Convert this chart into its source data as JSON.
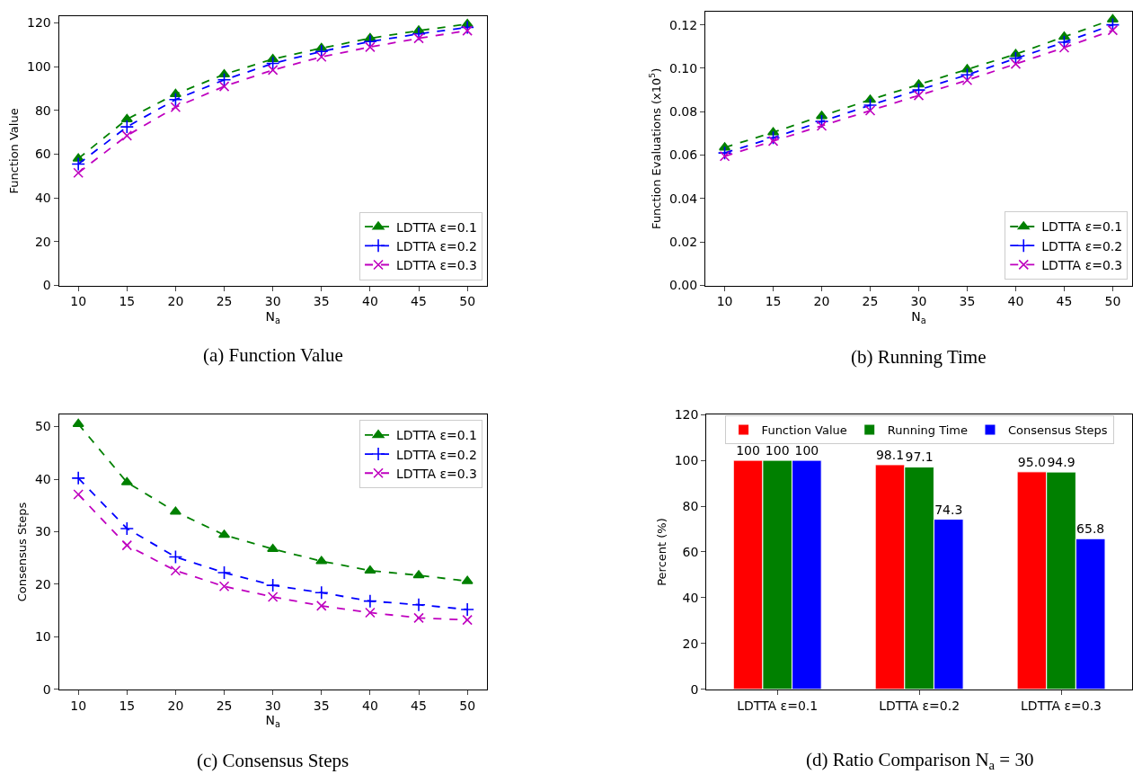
{
  "chart_data": [
    {
      "type": "line",
      "title": "(a) Function Value",
      "xlabel": "N$_{a}$",
      "ylabel": "Function Value",
      "x": [
        10,
        15,
        20,
        25,
        30,
        35,
        40,
        45,
        50
      ],
      "xlim": [
        8,
        52
      ],
      "xticks": [
        10,
        15,
        20,
        25,
        30,
        35,
        40,
        45,
        50
      ],
      "ylim": [
        0,
        123
      ],
      "yticks": [
        0,
        20,
        40,
        60,
        80,
        100,
        120
      ],
      "legend": "bottom right",
      "line_style": "dashed",
      "series": [
        {
          "name": "LDTTA ε=0.1",
          "color": "#008000",
          "marker": "triangle",
          "values": [
            58,
            76,
            87.5,
            96.5,
            103.5,
            108.5,
            113,
            116.5,
            119.5
          ]
        },
        {
          "name": "LDTTA ε=0.2",
          "color": "#0000ff",
          "marker": "plus",
          "values": [
            55.5,
            72.5,
            85,
            94,
            101.5,
            107,
            111.5,
            115,
            118
          ]
        },
        {
          "name": "LDTTA ε=0.3",
          "color": "#bf00bf",
          "marker": "cross",
          "values": [
            51.5,
            68.5,
            81.5,
            91,
            98.5,
            104.5,
            109,
            113,
            116.5
          ]
        }
      ]
    },
    {
      "type": "line",
      "title": "(b) Running Time",
      "xlabel": "N$_{a}$",
      "ylabel": "Function Evaluations (x10$^{5}$)",
      "x": [
        10,
        15,
        20,
        25,
        30,
        35,
        40,
        45,
        50
      ],
      "xlim": [
        8,
        52
      ],
      "xticks": [
        10,
        15,
        20,
        25,
        30,
        35,
        40,
        45,
        50
      ],
      "ylim": [
        0,
        0.126
      ],
      "yticks": [
        {
          "value": 0,
          "label": "0.00"
        },
        {
          "value": 0.02,
          "label": "0.02"
        },
        {
          "value": 0.04,
          "label": "0.04"
        },
        {
          "value": 0.06,
          "label": "0.06"
        },
        {
          "value": 0.08,
          "label": "0.08"
        },
        {
          "value": 0.1,
          "label": "0.10"
        },
        {
          "value": 0.12,
          "label": "0.12"
        }
      ],
      "legend": "bottom right",
      "line_style": "dashed",
      "series": [
        {
          "name": "LDTTA ε=0.1",
          "color": "#008000",
          "marker": "triangle",
          "values": [
            0.0635,
            0.0705,
            0.078,
            0.0855,
            0.0925,
            0.0995,
            0.1065,
            0.1145,
            0.1225
          ]
        },
        {
          "name": "LDTTA ε=0.2",
          "color": "#0000ff",
          "marker": "plus",
          "values": [
            0.061,
            0.068,
            0.0755,
            0.083,
            0.09,
            0.097,
            0.1045,
            0.112,
            0.12
          ]
        },
        {
          "name": "LDTTA ε=0.3",
          "color": "#bf00bf",
          "marker": "cross",
          "values": [
            0.0595,
            0.0665,
            0.0735,
            0.0805,
            0.0875,
            0.0945,
            0.102,
            0.1095,
            0.1175
          ]
        }
      ]
    },
    {
      "type": "line",
      "title": "(c) Consensus Steps",
      "xlabel": "N$_{a}$",
      "ylabel": "Consensus Steps",
      "x": [
        10,
        15,
        20,
        25,
        30,
        35,
        40,
        45,
        50
      ],
      "xlim": [
        8,
        52
      ],
      "xticks": [
        10,
        15,
        20,
        25,
        30,
        35,
        40,
        45,
        50
      ],
      "ylim": [
        0,
        52.3
      ],
      "yticks": [
        0,
        10,
        20,
        30,
        40,
        50
      ],
      "legend": "top right",
      "line_style": "dashed",
      "series": [
        {
          "name": "LDTTA ε=0.1",
          "color": "#008000",
          "marker": "triangle",
          "values": [
            50.5,
            39.4,
            33.8,
            29.4,
            26.7,
            24.4,
            22.6,
            21.7,
            20.6
          ]
        },
        {
          "name": "LDTTA ε=0.2",
          "color": "#0000ff",
          "marker": "plus",
          "values": [
            40.2,
            30.6,
            25.2,
            22.2,
            19.8,
            18.4,
            16.8,
            16.1,
            15.2
          ]
        },
        {
          "name": "LDTTA ε=0.3",
          "color": "#bf00bf",
          "marker": "cross",
          "values": [
            37.1,
            27.4,
            22.6,
            19.6,
            17.6,
            15.9,
            14.6,
            13.6,
            13.2
          ]
        }
      ]
    },
    {
      "type": "bar",
      "title": "(d) Ratio Comparison N$_{a}$ = 30",
      "ylabel": "Percent (%)",
      "categories": [
        "LDTTA ε=0.1",
        "LDTTA ε=0.2",
        "LDTTA ε=0.3"
      ],
      "ylim": [
        0,
        120
      ],
      "yticks": [
        0,
        20,
        40,
        60,
        80,
        100,
        120
      ],
      "legend": "top",
      "series": [
        {
          "name": "Function Value",
          "color": "#ff0000",
          "values": [
            100,
            98.1,
            95.0
          ],
          "value_labels": [
            "100",
            "98.1",
            "95.0"
          ]
        },
        {
          "name": "Running Time",
          "color": "#008000",
          "values": [
            100,
            97.1,
            94.9
          ],
          "value_labels": [
            "100",
            "97.1",
            "94.9"
          ]
        },
        {
          "name": "Consensus Steps",
          "color": "#0000ff",
          "values": [
            100,
            74.3,
            65.8
          ],
          "value_labels": [
            "100",
            "74.3",
            "65.8"
          ]
        }
      ]
    }
  ]
}
